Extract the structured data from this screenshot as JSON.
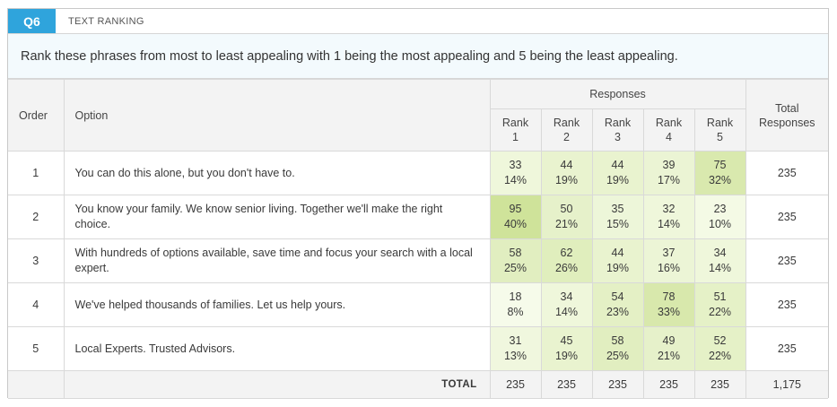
{
  "question": {
    "badge": "Q6",
    "type": "TEXT RANKING",
    "prompt": "Rank these phrases from most to least appealing with 1 being the most appealing and 5 being the least appealing."
  },
  "table": {
    "headers": {
      "order": "Order",
      "option": "Option",
      "responses": "Responses",
      "rank_line1": "Rank",
      "ranks": [
        "1",
        "2",
        "3",
        "4",
        "5"
      ],
      "total_line1": "Total",
      "total_line2": "Responses"
    },
    "rows": [
      {
        "order": "1",
        "option": "You can do this alone, but you don't have to.",
        "cells": [
          {
            "count": "33",
            "pct": "14%"
          },
          {
            "count": "44",
            "pct": "19%"
          },
          {
            "count": "44",
            "pct": "19%"
          },
          {
            "count": "39",
            "pct": "17%"
          },
          {
            "count": "75",
            "pct": "32%"
          }
        ],
        "total": "235"
      },
      {
        "order": "2",
        "option": "You know your family. We know senior living. Together we'll make the right choice.",
        "cells": [
          {
            "count": "95",
            "pct": "40%"
          },
          {
            "count": "50",
            "pct": "21%"
          },
          {
            "count": "35",
            "pct": "15%"
          },
          {
            "count": "32",
            "pct": "14%"
          },
          {
            "count": "23",
            "pct": "10%"
          }
        ],
        "total": "235"
      },
      {
        "order": "3",
        "option": "With hundreds of options available, save time and focus your search with a local expert.",
        "cells": [
          {
            "count": "58",
            "pct": "25%"
          },
          {
            "count": "62",
            "pct": "26%"
          },
          {
            "count": "44",
            "pct": "19%"
          },
          {
            "count": "37",
            "pct": "16%"
          },
          {
            "count": "34",
            "pct": "14%"
          }
        ],
        "total": "235"
      },
      {
        "order": "4",
        "option": "We've helped thousands of families. Let us help yours.",
        "cells": [
          {
            "count": "18",
            "pct": "8%"
          },
          {
            "count": "34",
            "pct": "14%"
          },
          {
            "count": "54",
            "pct": "23%"
          },
          {
            "count": "78",
            "pct": "33%"
          },
          {
            "count": "51",
            "pct": "22%"
          }
        ],
        "total": "235"
      },
      {
        "order": "5",
        "option": "Local Experts. Trusted Advisors.",
        "cells": [
          {
            "count": "31",
            "pct": "13%"
          },
          {
            "count": "45",
            "pct": "19%"
          },
          {
            "count": "58",
            "pct": "25%"
          },
          {
            "count": "49",
            "pct": "21%"
          },
          {
            "count": "52",
            "pct": "22%"
          }
        ],
        "total": "235"
      }
    ],
    "footer": {
      "label": "TOTAL",
      "rank_totals": [
        "235",
        "235",
        "235",
        "235",
        "235"
      ],
      "grand_total": "1,175"
    }
  },
  "colors": {
    "badge": "#2fa4dc",
    "heat_low": "#f6fbea",
    "heat_high": "#cfe39a"
  }
}
